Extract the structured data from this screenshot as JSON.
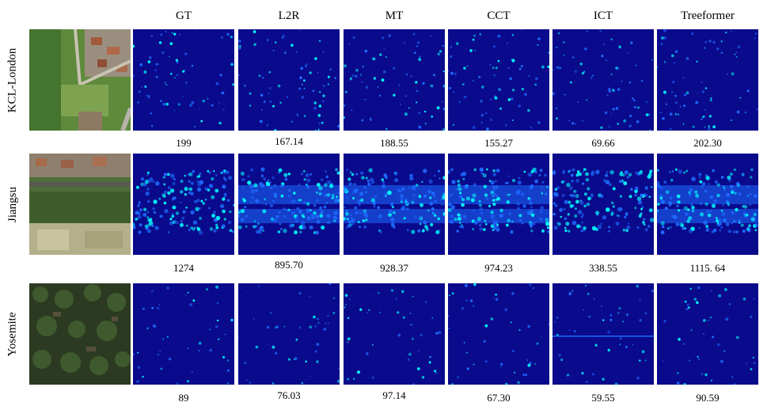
{
  "columns": [
    "GT",
    "L2R",
    "MT",
    "CCT",
    "ICT",
    "Treeformer"
  ],
  "rows": [
    {
      "label": "KCL-London",
      "values": [
        "199",
        "167.14",
        "188.55",
        "155.27",
        "69.66",
        "202.30"
      ]
    },
    {
      "label": "Jiangsu",
      "values": [
        "1274",
        "895.70",
        "928.37",
        "974.23",
        "338.55",
        "1115. 64"
      ]
    },
    {
      "label": "Yosemite",
      "values": [
        "89",
        "76.03",
        "97.14",
        "67.30",
        "59.55",
        "90.59"
      ]
    }
  ],
  "colors": {
    "map_background": "#0a0a8c",
    "map_hot": "#00ffff",
    "map_mid": "#1e6cff"
  }
}
